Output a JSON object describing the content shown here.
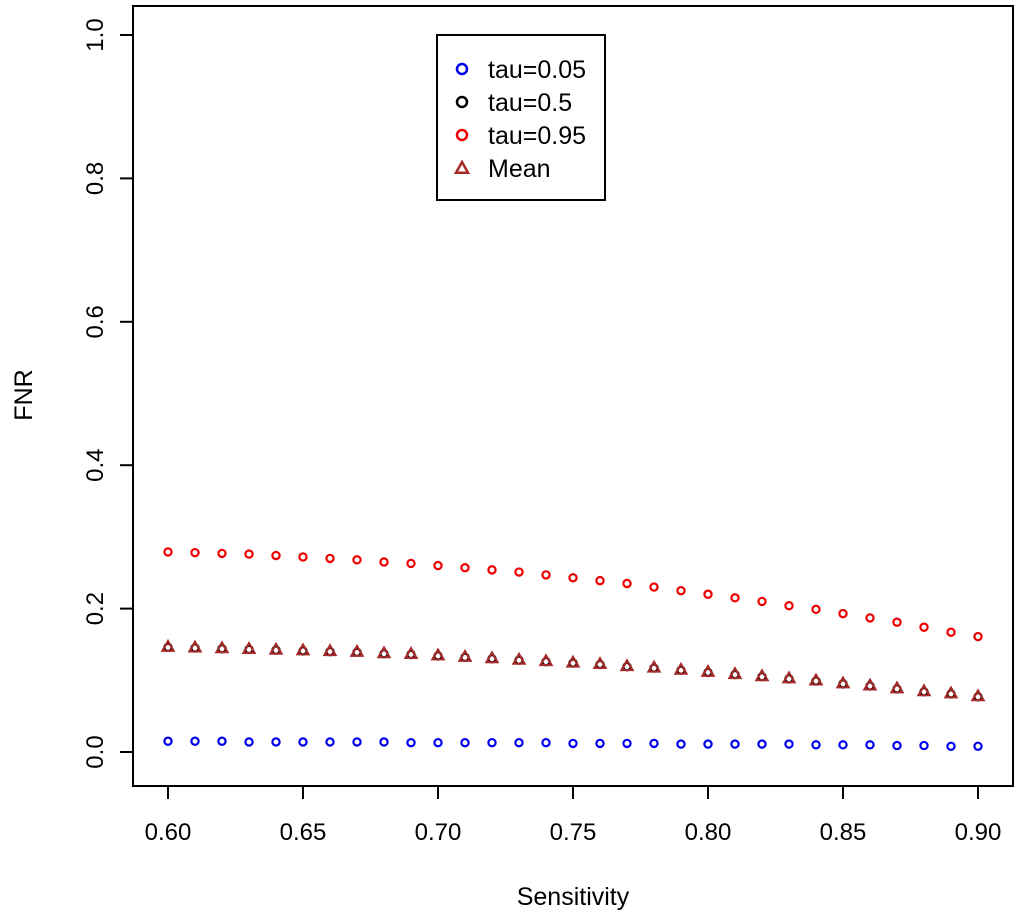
{
  "chart_data": {
    "type": "scatter",
    "title": "",
    "xlabel": "Sensitivity",
    "ylabel": "FNR",
    "xlim": [
      0.6,
      0.9
    ],
    "ylim": [
      0.0,
      1.0
    ],
    "x_ticks": [
      "0.60",
      "0.65",
      "0.70",
      "0.75",
      "0.80",
      "0.85",
      "0.90"
    ],
    "y_ticks": [
      "0.0",
      "0.2",
      "0.4",
      "0.6",
      "0.8",
      "1.0"
    ],
    "legend_position": "top-center",
    "x": [
      0.6,
      0.61,
      0.62,
      0.63,
      0.64,
      0.65,
      0.66,
      0.67,
      0.68,
      0.69,
      0.7,
      0.71,
      0.72,
      0.73,
      0.74,
      0.75,
      0.76,
      0.77,
      0.78,
      0.79,
      0.8,
      0.81,
      0.82,
      0.83,
      0.84,
      0.85,
      0.86,
      0.87,
      0.88,
      0.89,
      0.9
    ],
    "series": [
      {
        "name": "tau=0.05",
        "marker": "circle",
        "color": "#0000ee",
        "values": [
          0.015,
          0.015,
          0.015,
          0.014,
          0.014,
          0.014,
          0.014,
          0.014,
          0.014,
          0.013,
          0.013,
          0.013,
          0.013,
          0.013,
          0.013,
          0.012,
          0.012,
          0.012,
          0.012,
          0.011,
          0.011,
          0.011,
          0.011,
          0.011,
          0.01,
          0.01,
          0.01,
          0.009,
          0.009,
          0.008,
          0.008
        ]
      },
      {
        "name": "tau=0.5",
        "marker": "circle",
        "color": "#000000",
        "values": [
          0.146,
          0.145,
          0.144,
          0.143,
          0.142,
          0.141,
          0.14,
          0.139,
          0.137,
          0.136,
          0.134,
          0.132,
          0.13,
          0.128,
          0.126,
          0.124,
          0.122,
          0.119,
          0.117,
          0.114,
          0.111,
          0.108,
          0.105,
          0.102,
          0.099,
          0.095,
          0.092,
          0.088,
          0.084,
          0.081,
          0.077
        ]
      },
      {
        "name": "tau=0.95",
        "marker": "circle",
        "color": "#ee0000",
        "values": [
          0.279,
          0.278,
          0.277,
          0.276,
          0.274,
          0.272,
          0.27,
          0.268,
          0.265,
          0.263,
          0.26,
          0.257,
          0.254,
          0.251,
          0.247,
          0.243,
          0.239,
          0.235,
          0.23,
          0.225,
          0.22,
          0.215,
          0.21,
          0.204,
          0.199,
          0.193,
          0.187,
          0.181,
          0.174,
          0.167,
          0.161
        ]
      },
      {
        "name": "Mean",
        "marker": "triangle",
        "color": "#a52a2a",
        "values": [
          0.147,
          0.146,
          0.145,
          0.144,
          0.143,
          0.142,
          0.141,
          0.14,
          0.138,
          0.137,
          0.135,
          0.133,
          0.131,
          0.129,
          0.127,
          0.125,
          0.123,
          0.12,
          0.118,
          0.115,
          0.112,
          0.109,
          0.106,
          0.103,
          0.1,
          0.096,
          0.093,
          0.089,
          0.085,
          0.082,
          0.078
        ]
      }
    ]
  }
}
